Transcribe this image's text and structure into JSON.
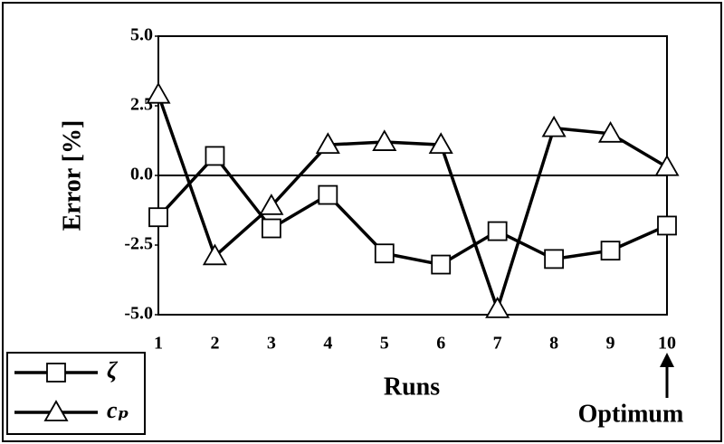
{
  "chart_data": {
    "type": "line",
    "x_label": "Runs",
    "y_label": "Error [%]",
    "x": [
      1,
      2,
      3,
      4,
      5,
      6,
      7,
      8,
      9,
      10
    ],
    "series": [
      {
        "name": "ζ",
        "color": "#000000",
        "marker": "square",
        "values": [
          -1.5,
          0.7,
          -1.9,
          -0.7,
          -2.8,
          -3.2,
          -2.0,
          -3.0,
          -2.7,
          -1.8
        ]
      },
      {
        "name": "cₚ",
        "color": "#000000",
        "marker": "triangle",
        "values": [
          2.9,
          -2.9,
          -1.1,
          1.1,
          1.2,
          1.1,
          -4.8,
          1.7,
          1.5,
          0.3
        ]
      }
    ],
    "xlim": [
      1,
      10
    ],
    "xticks": [
      1,
      2,
      3,
      4,
      5,
      6,
      7,
      8,
      9,
      10
    ],
    "ylim": [
      -5,
      5
    ],
    "yticks": [
      {
        "value": -5,
        "label": "-5.0"
      },
      -2.5,
      {
        "value": 0,
        "label": "0.0"
      },
      2.5,
      {
        "value": 5,
        "label": "5.0"
      }
    ],
    "zero_line": true,
    "legend": "bottom-left",
    "annotation": {
      "text": "Optimum",
      "x": 10
    }
  }
}
